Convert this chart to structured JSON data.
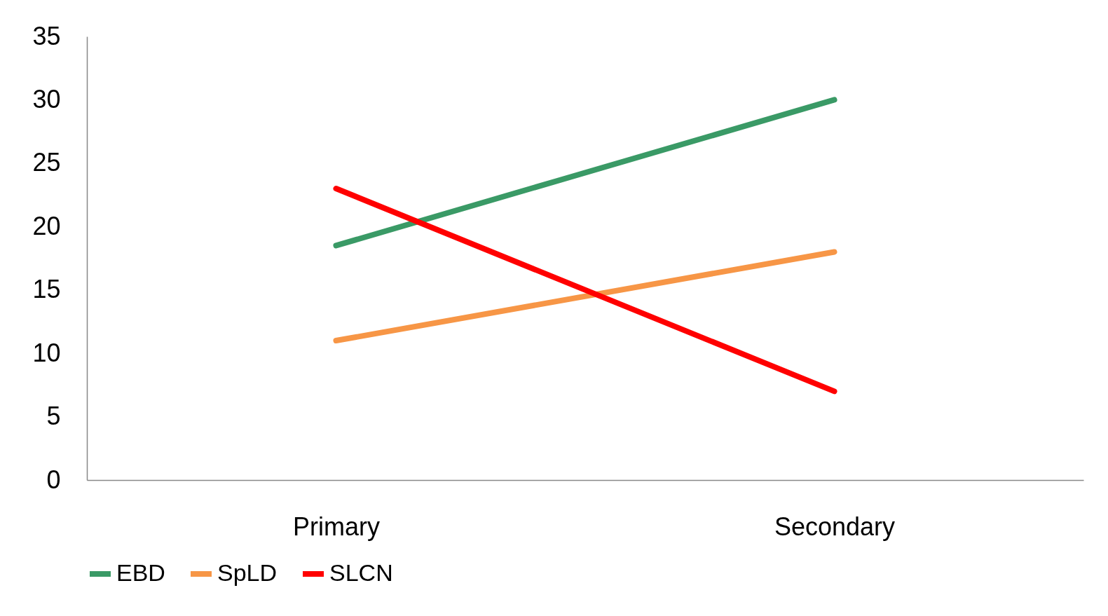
{
  "chart_data": {
    "type": "line",
    "categories": [
      "Primary",
      "Secondary"
    ],
    "series": [
      {
        "name": "EBD",
        "color": "#3a9a66",
        "values": [
          18.5,
          30
        ]
      },
      {
        "name": "SpLD",
        "color": "#f79646",
        "values": [
          11,
          18
        ]
      },
      {
        "name": "SLCN",
        "color": "#ff0000",
        "values": [
          23,
          7
        ]
      }
    ],
    "ylim": [
      0,
      35
    ],
    "yticks": [
      0,
      5,
      10,
      15,
      20,
      25,
      30,
      35
    ],
    "grid": false,
    "legend": "bottom",
    "marker": "none",
    "line_style": "solid"
  }
}
